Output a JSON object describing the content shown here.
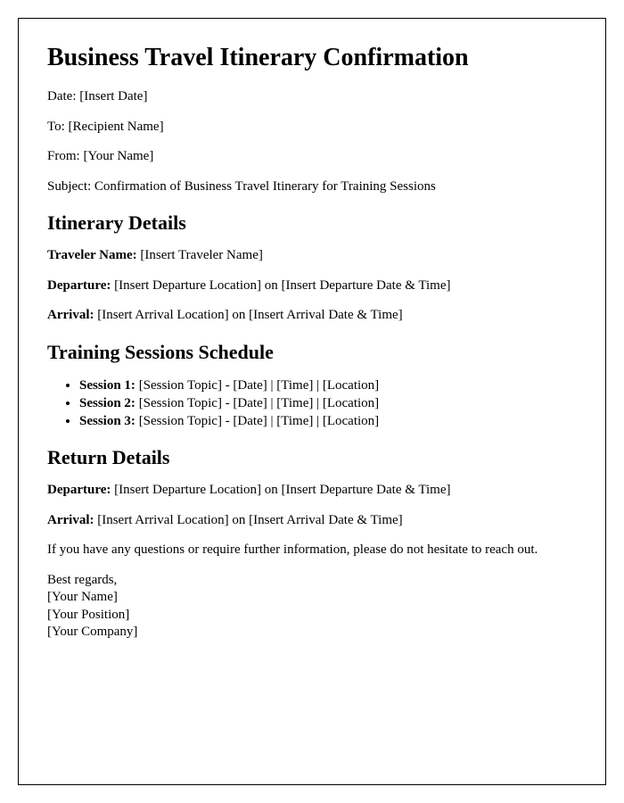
{
  "colors": {
    "text": "#000000",
    "border": "#000000",
    "background": "#ffffff"
  },
  "typography": {
    "font_family": "Times New Roman",
    "h1_fontsize": 28,
    "h2_fontsize": 22,
    "body_fontsize": 15
  },
  "title": "Business Travel Itinerary Confirmation",
  "meta": {
    "date_label": "Date: ",
    "date_value": "[Insert Date]",
    "to_label": "To: ",
    "to_value": "[Recipient Name]",
    "from_label": "From: ",
    "from_value": "[Your Name]",
    "subject_label": "Subject: ",
    "subject_value": "Confirmation of Business Travel Itinerary for Training Sessions"
  },
  "itinerary": {
    "heading": "Itinerary Details",
    "traveler_label": "Traveler Name: ",
    "traveler_value": "[Insert Traveler Name]",
    "departure_label": "Departure: ",
    "departure_value": "[Insert Departure Location] on [Insert Departure Date & Time]",
    "arrival_label": "Arrival: ",
    "arrival_value": "[Insert Arrival Location] on [Insert Arrival Date & Time]"
  },
  "training": {
    "heading": "Training Sessions Schedule",
    "sessions": [
      {
        "label": "Session 1: ",
        "value": "[Session Topic] - [Date] | [Time] | [Location]"
      },
      {
        "label": "Session 2: ",
        "value": "[Session Topic] - [Date] | [Time] | [Location]"
      },
      {
        "label": "Session 3: ",
        "value": "[Session Topic] - [Date] | [Time] | [Location]"
      }
    ]
  },
  "return_details": {
    "heading": "Return Details",
    "departure_label": "Departure: ",
    "departure_value": "[Insert Departure Location] on [Insert Departure Date & Time]",
    "arrival_label": "Arrival: ",
    "arrival_value": "[Insert Arrival Location] on [Insert Arrival Date & Time]"
  },
  "closing": {
    "note": "If you have any questions or require further information, please do not hesitate to reach out.",
    "regards": "Best regards,",
    "name": "[Your Name]",
    "position": "[Your Position]",
    "company": "[Your Company]"
  }
}
